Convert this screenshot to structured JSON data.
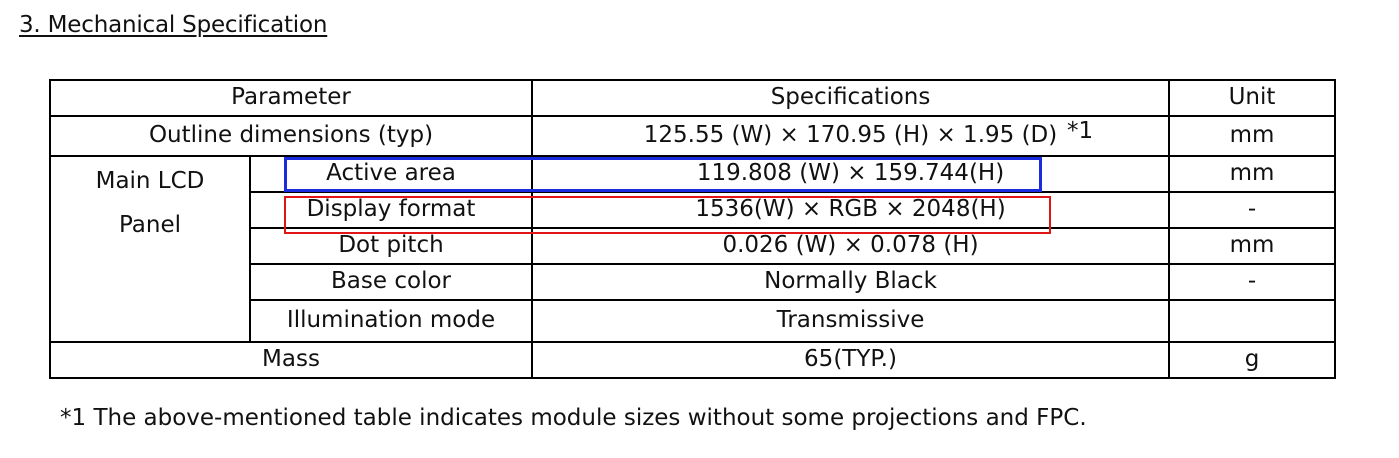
{
  "section": {
    "title": "3. Mechanical Specification"
  },
  "table": {
    "headers": {
      "parameter": "Parameter",
      "specifications": "Specifications",
      "unit": "Unit"
    },
    "outline": {
      "parameter": "Outline dimensions (typ)",
      "spec": "125.55 (W) × 170.95 (H) × 1.95 (D)",
      "note": "*1",
      "unit": "mm"
    },
    "group_label_line1": "Main LCD",
    "group_label_line2": "Panel",
    "rows": [
      {
        "parameter": "Active area",
        "spec": "119.808 (W) × 159.744(H)",
        "unit": "mm"
      },
      {
        "parameter": "Display format",
        "spec": "1536(W) × RGB × 2048(H)",
        "unit": "-"
      },
      {
        "parameter": "Dot pitch",
        "spec": "0.026 (W) × 0.078 (H)",
        "unit": "mm"
      },
      {
        "parameter": "Base color",
        "spec": "Normally Black",
        "unit": "-"
      },
      {
        "parameter": "Illumination mode",
        "spec": "Transmissive",
        "unit": ""
      }
    ],
    "mass": {
      "parameter": "Mass",
      "spec": "65(TYP.)",
      "unit": "g"
    }
  },
  "footnote": "*1 The above-mentioned table indicates module sizes without some projections and FPC.",
  "colors": {
    "highlight_blue": "#1a2be0",
    "highlight_red": "#e01515"
  }
}
